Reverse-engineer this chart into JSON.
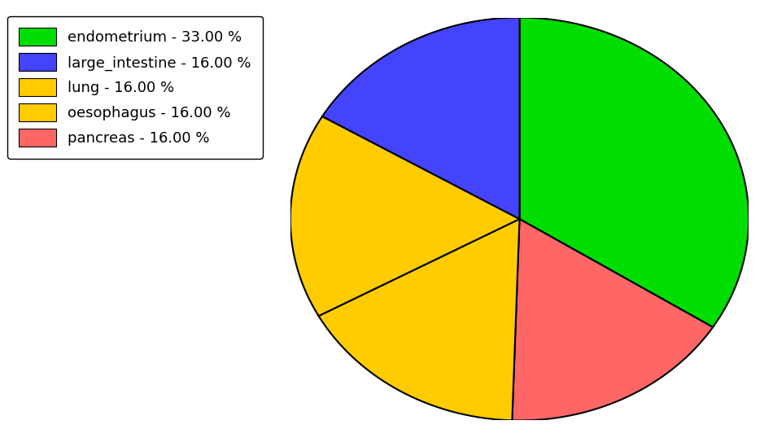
{
  "labels": [
    "endometrium",
    "pancreas",
    "lung",
    "oesophagus",
    "large_intestine"
  ],
  "values": [
    33.0,
    16.0,
    16.0,
    16.0,
    16.0
  ],
  "colors": [
    "#00dd00",
    "#ff6666",
    "#ffcc00",
    "#ffcc00",
    "#4444ff"
  ],
  "legend_labels": [
    "endometrium - 33.00 %",
    "large_intestine - 16.00 %",
    "lung - 16.00 %",
    "oesophagus - 16.00 %",
    "pancreas - 16.00 %"
  ],
  "legend_colors": [
    "#00dd00",
    "#4444ff",
    "#ffcc00",
    "#ffcc00",
    "#ff6666"
  ],
  "figsize": [
    9.39,
    5.38
  ],
  "dpi": 100,
  "background_color": "#ffffff",
  "startangle": 90,
  "legend_fontsize": 13
}
